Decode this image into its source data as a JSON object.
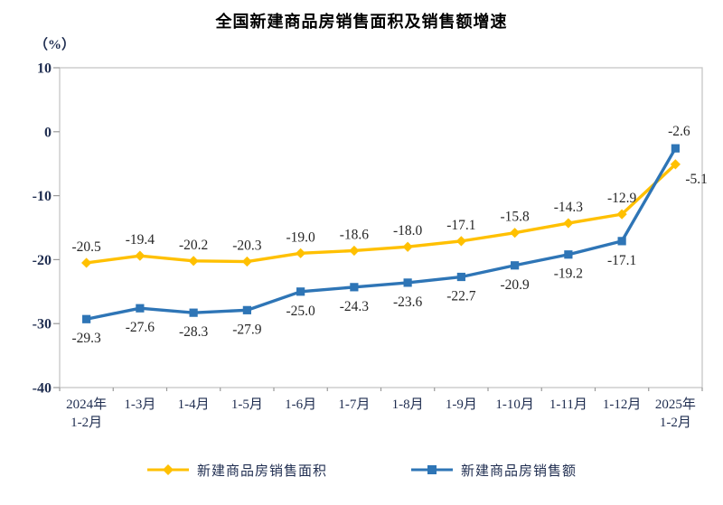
{
  "title": "全国新建商品房销售面积及销售额增速",
  "y_axis_unit": "（%）",
  "chart_data": {
    "type": "line",
    "categories": [
      "2024年\n1-2月",
      "1-3月",
      "1-4月",
      "1-5月",
      "1-6月",
      "1-7月",
      "1-8月",
      "1-9月",
      "1-10月",
      "1-11月",
      "1-12月",
      "2025年\n1-2月"
    ],
    "series": [
      {
        "name": "新建商品房销售面积",
        "color": "#FFC000",
        "marker": "diamond",
        "values": [
          -20.5,
          -19.4,
          -20.2,
          -20.3,
          -19.0,
          -18.6,
          -18.0,
          -17.1,
          -15.8,
          -14.3,
          -12.9,
          -5.1
        ],
        "labels": [
          "-20.5",
          "-19.4",
          "-20.2",
          "-20.3",
          "-19.0",
          "-18.6",
          "-18.0",
          "-17.1",
          "-15.8",
          "-14.3",
          "-12.9",
          "-5.1"
        ]
      },
      {
        "name": "新建商品房销售额",
        "color": "#2E75B6",
        "marker": "square",
        "values": [
          -29.3,
          -27.6,
          -28.3,
          -27.9,
          -25.0,
          -24.3,
          -23.6,
          -22.7,
          -20.9,
          -19.2,
          -17.1,
          -2.6
        ],
        "labels": [
          "-29.3",
          "-27.6",
          "-28.3",
          "-27.9",
          "-25.0",
          "-24.3",
          "-23.6",
          "-22.7",
          "-20.9",
          "-19.2",
          "-17.1",
          "-2.6"
        ]
      }
    ],
    "ylim": [
      -40,
      10
    ],
    "y_ticks": [
      10,
      0,
      -10,
      -20,
      -30,
      -40
    ],
    "grid": false,
    "legend_position": "bottom",
    "axis_text_color": "#1f2d50",
    "data_label_color": "#262626",
    "border_color": "#c6c6c6",
    "tick_color": "#9a9a9a"
  },
  "legend": {
    "items": [
      {
        "label": "新建商品房销售面积",
        "color": "#FFC000",
        "marker": "diamond"
      },
      {
        "label": "新建商品房销售额",
        "color": "#2E75B6",
        "marker": "square"
      }
    ]
  }
}
